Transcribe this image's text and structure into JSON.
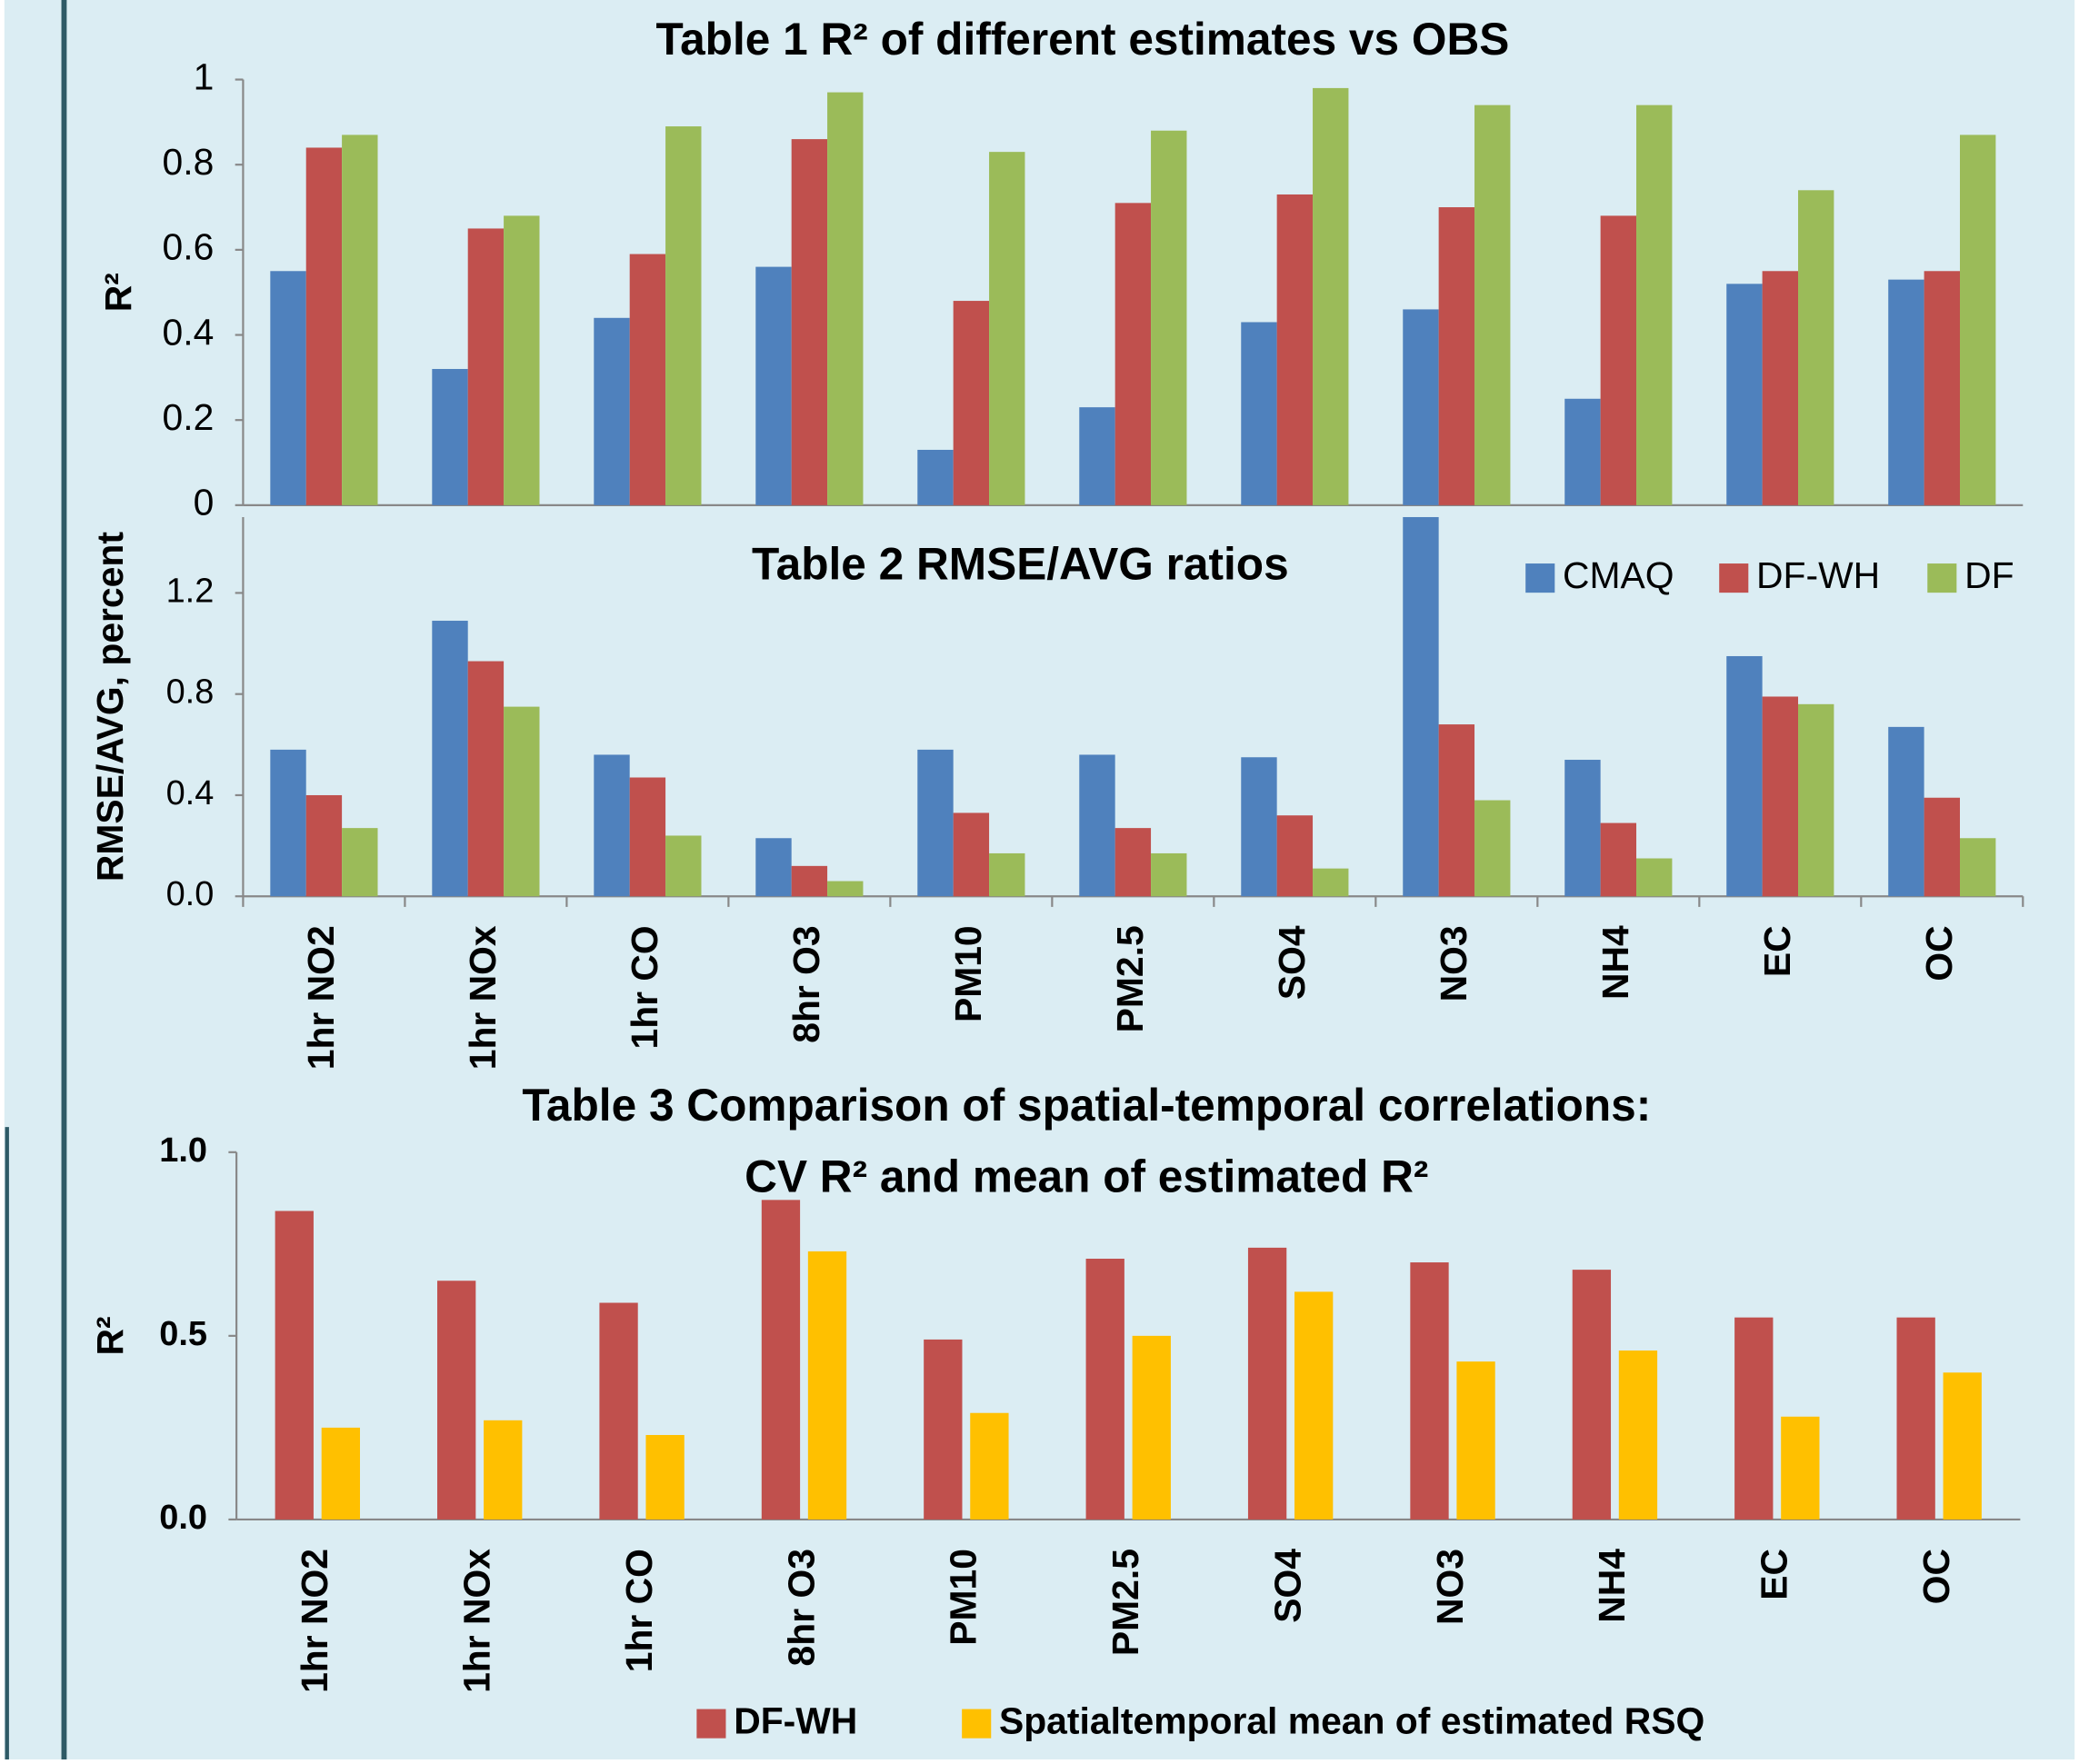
{
  "chart_data": [
    {
      "type": "bar",
      "title": "Table 1 R² of different estimates vs OBS",
      "y_label": "R²",
      "ylim": [
        0,
        1
      ],
      "yticks": [
        0,
        0.2,
        0.4,
        0.6,
        0.8,
        1
      ],
      "series": [
        {
          "color": "#4f81bd",
          "values": [
            0.55,
            0.32,
            0.44,
            0.56,
            0.13,
            0.23,
            0.43,
            0.46,
            0.25,
            0.52,
            0.53
          ]
        },
        {
          "color": "#c0504d",
          "values": [
            0.84,
            0.65,
            0.59,
            0.86,
            0.48,
            0.71,
            0.73,
            0.7,
            0.68,
            0.55,
            0.55
          ]
        },
        {
          "color": "#9bbb59",
          "values": [
            0.87,
            0.68,
            0.89,
            0.97,
            0.83,
            0.88,
            0.98,
            0.94,
            0.94,
            0.74,
            0.87
          ]
        }
      ]
    },
    {
      "type": "bar",
      "title": "Table 2 RMSE/AVG ratios",
      "y_label": "RMSE/AVG, percent",
      "categories": [
        "1hr NO2",
        "1hr NOx",
        "1hr CO",
        "8hr O3",
        "PM10",
        "PM2.5",
        "SO4",
        "NO3",
        "NH4",
        "EC",
        "OC"
      ],
      "ylim": [
        0,
        1.5
      ],
      "yticks": [
        {
          "value": 0,
          "label": "0.0"
        },
        0.4,
        0.8,
        1.2
      ],
      "series": [
        {
          "name": "CMAQ",
          "color": "#4f81bd",
          "values": [
            0.58,
            1.09,
            0.56,
            0.23,
            0.58,
            0.56,
            0.55,
            1.5,
            0.54,
            0.95,
            0.67
          ]
        },
        {
          "name": "DF-WH",
          "color": "#c0504d",
          "values": [
            0.4,
            0.93,
            0.47,
            0.12,
            0.33,
            0.27,
            0.32,
            0.68,
            0.29,
            0.79,
            0.39
          ]
        },
        {
          "name": "DF",
          "color": "#9bbb59",
          "values": [
            0.27,
            0.75,
            0.24,
            0.06,
            0.17,
            0.17,
            0.11,
            0.38,
            0.15,
            0.76,
            0.23
          ]
        }
      ]
    },
    {
      "type": "bar",
      "title": [
        "Table 3 Comparison of spatial-temporal correlations:",
        "CV R² and mean of estimated R²"
      ],
      "y_label": "R²",
      "categories": [
        "1hr NO2",
        "1hr NOx",
        "1hr CO",
        "8hr O3",
        "PM10",
        "PM2.5",
        "SO4",
        "NO3",
        "NH4",
        "EC",
        "OC"
      ],
      "ylim": [
        0,
        1
      ],
      "yticks": [
        {
          "value": 0,
          "label": "0.0"
        },
        0.5,
        {
          "value": 1,
          "label": "1.0"
        }
      ],
      "series": [
        {
          "name": "DF-WH",
          "color": "#c0504d",
          "values": [
            0.84,
            0.65,
            0.59,
            0.87,
            0.49,
            0.71,
            0.74,
            0.7,
            0.68,
            0.55,
            0.55
          ]
        },
        {
          "name": "Spatialtemporal mean of estimated RSQ",
          "color": "#ffc000",
          "values": [
            0.25,
            0.27,
            0.23,
            0.73,
            0.29,
            0.5,
            0.62,
            0.43,
            0.46,
            0.28,
            0.4
          ]
        }
      ]
    }
  ]
}
